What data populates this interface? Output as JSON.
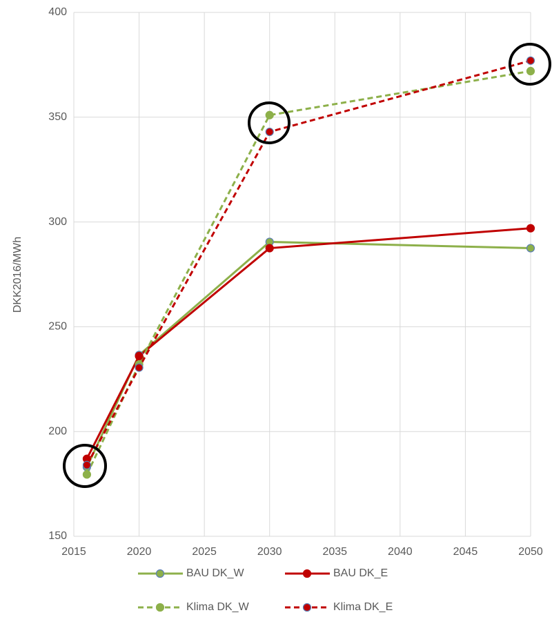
{
  "chart_data": {
    "type": "line",
    "y_label": "DKK2016/MWh",
    "x": [
      2016,
      2020,
      2030,
      2050
    ],
    "xlim": [
      2015,
      2050
    ],
    "xticks": [
      2015,
      2020,
      2025,
      2030,
      2035,
      2040,
      2045,
      2050
    ],
    "ylim": [
      150,
      400
    ],
    "yticks": [
      150,
      200,
      250,
      300,
      350,
      400
    ],
    "grid": true,
    "legend": "bottom",
    "series": [
      {
        "name": "BAU DK_W",
        "color": "#8db04a",
        "marker_edge": "#5b7fb5",
        "dash": false,
        "values": [
          183,
          236.5,
          290.5,
          287.5
        ]
      },
      {
        "name": "BAU DK_E",
        "color": "#c00000",
        "marker_edge": "#c00000",
        "dash": false,
        "values": [
          187,
          236,
          287.5,
          297
        ]
      },
      {
        "name": "Klima DK_W",
        "color": "#8db04a",
        "marker_edge": "#8db04a",
        "dash": true,
        "values": [
          179.5,
          232,
          351,
          372
        ]
      },
      {
        "name": "Klima DK_E",
        "color": "#c00000",
        "marker_edge": "#5b7fb5",
        "dash": true,
        "values": [
          184,
          230.5,
          343,
          377
        ]
      }
    ]
  }
}
